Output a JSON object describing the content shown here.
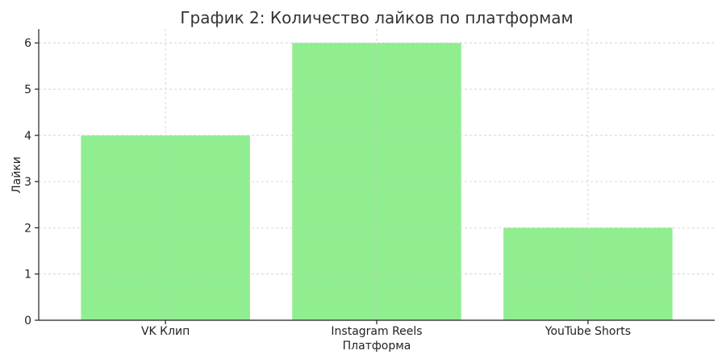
{
  "chart_data": {
    "type": "bar",
    "title": "График 2: Количество лайков по платформам",
    "xlabel": "Платформа",
    "ylabel": "Лайки",
    "categories": [
      "VK Клип",
      "Instagram Reels",
      "YouTube Shorts"
    ],
    "values": [
      4,
      6,
      2
    ],
    "ylim": [
      0,
      6.3
    ],
    "yticks": [
      0,
      1,
      2,
      3,
      4,
      5,
      6
    ],
    "grid": true,
    "bar_color": "#90ee90"
  }
}
